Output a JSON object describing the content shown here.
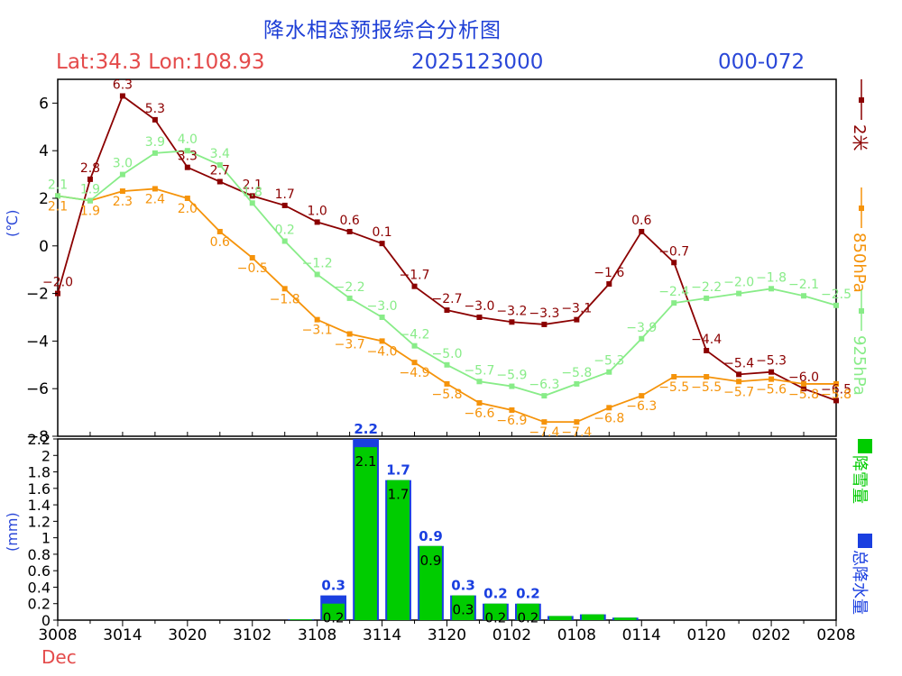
{
  "header": {
    "title": "降水相态预报综合分析图",
    "location": "Lat:34.3  Lon:108.93",
    "init_time": "2025123000",
    "range": "000-072"
  },
  "units": {
    "temperature": "(℃)",
    "precipitation": "(mm)"
  },
  "x_axis": {
    "ticks": [
      "3008",
      "3014",
      "3020",
      "3102",
      "3108",
      "3114",
      "3120",
      "0102",
      "0108",
      "0114",
      "0120",
      "0202",
      "0208"
    ],
    "month_label": "Dec"
  },
  "colors": {
    "t2m": "#8b0000",
    "t850": "#f5930a",
    "t925": "#88ec88",
    "snow": "#00cc00",
    "total": "#1a3fe0",
    "axis": "#000000"
  },
  "chart_data": [
    {
      "type": "line",
      "title": "降水相态预报综合分析图",
      "ylabel": "(℃)",
      "ylim": [
        -8,
        7
      ],
      "yticks": [
        -8,
        -6,
        -4,
        -2,
        0,
        2,
        4,
        6
      ],
      "x_count": 25,
      "x_ticks": [
        "3008",
        "3014",
        "3020",
        "3102",
        "3108",
        "3114",
        "3120",
        "0102",
        "0108",
        "0114",
        "0120",
        "0202",
        "0208"
      ],
      "series": [
        {
          "name": "2米",
          "color": "#8b0000",
          "values": [
            -2.0,
            2.8,
            6.3,
            5.3,
            3.3,
            2.7,
            2.1,
            1.7,
            1.0,
            0.6,
            0.1,
            -1.7,
            -2.7,
            -3.0,
            -3.2,
            -3.3,
            -3.1,
            -1.6,
            0.6,
            -0.7,
            -4.4,
            -5.4,
            -5.3,
            -6.0,
            -6.5
          ]
        },
        {
          "name": "850hPa",
          "color": "#f5930a",
          "values": [
            2.1,
            1.9,
            2.3,
            2.4,
            2.0,
            0.6,
            -0.5,
            -1.8,
            -3.1,
            -3.7,
            -4.0,
            -4.9,
            -5.8,
            -6.6,
            -6.9,
            -7.4,
            -7.4,
            -6.8,
            -6.3,
            -5.5,
            -5.5,
            -5.7,
            -5.6,
            -5.8,
            -5.8
          ]
        },
        {
          "name": "925hPa",
          "color": "#88ec88",
          "values": [
            2.1,
            1.9,
            3.0,
            3.9,
            4.0,
            3.4,
            1.8,
            0.2,
            -1.2,
            -2.2,
            -3.0,
            -4.2,
            -5.0,
            -5.7,
            -5.9,
            -6.3,
            -5.8,
            -5.3,
            -3.9,
            -2.4,
            -2.2,
            -2.0,
            -1.8,
            -2.1,
            -2.5
          ]
        }
      ]
    },
    {
      "type": "bar",
      "ylabel": "(mm)",
      "ylim": [
        0,
        2.2
      ],
      "yticks": [
        0,
        0.2,
        0.4,
        0.6,
        0.8,
        1,
        1.2,
        1.4,
        1.6,
        1.8,
        2,
        2.2
      ],
      "x_count": 25,
      "series": [
        {
          "name": "总降水量",
          "color": "#1a3fe0",
          "values": [
            0,
            0,
            0,
            0,
            0,
            0,
            0,
            0.01,
            0.3,
            2.2,
            1.7,
            0.9,
            0.3,
            0.2,
            0.2,
            0.05,
            0.07,
            0.03,
            0,
            0,
            0,
            0,
            0,
            0,
            0
          ]
        },
        {
          "name": "降雪量",
          "color": "#00cc00",
          "values": [
            0,
            0,
            0,
            0,
            0,
            0,
            0,
            0.01,
            0.2,
            2.1,
            1.7,
            0.9,
            0.3,
            0.2,
            0.2,
            0.05,
            0.07,
            0.03,
            0,
            0,
            0,
            0,
            0,
            0,
            0
          ]
        }
      ],
      "labels_total": [
        "",
        "",
        "",
        "",
        "",
        "",
        "",
        "",
        "0.3",
        "2.2",
        "1.7",
        "0.9",
        "0.3",
        "0.2",
        "0.2",
        "",
        "",
        "",
        "",
        "",
        "",
        "",
        "",
        "",
        ""
      ],
      "labels_snow": [
        "",
        "",
        "",
        "",
        "",
        "",
        "",
        "",
        "0.2",
        "2.1",
        "1.7",
        "0.9",
        "0.3",
        "0.2",
        "0.2",
        "",
        "",
        "",
        "",
        "",
        "",
        "",
        "",
        "",
        ""
      ]
    }
  ]
}
